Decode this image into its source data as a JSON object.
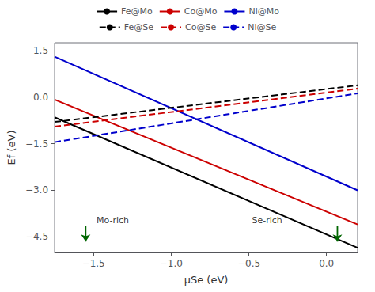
{
  "chart_data": {
    "type": "line",
    "xlabel": "μSe (eV)",
    "ylabel": "Ef (eV)",
    "xlim": [
      -1.75,
      0.2
    ],
    "ylim": [
      -5.0,
      1.75
    ],
    "xticks": [
      {
        "value": -1.5,
        "label": "−1.5"
      },
      {
        "value": -1.0,
        "label": "−1.0"
      },
      {
        "value": -0.5,
        "label": "−0.5"
      },
      {
        "value": 0.0,
        "label": "0.0"
      }
    ],
    "yticks": [
      {
        "value": -4.5,
        "label": "−4.5"
      },
      {
        "value": -3.0,
        "label": "−3.0"
      },
      {
        "value": -1.5,
        "label": "−1.5"
      },
      {
        "value": 0.0,
        "label": "0.0"
      },
      1.5
    ],
    "grid": false,
    "legend": "top",
    "series": [
      {
        "name": "Fe@Mo",
        "color": "#000000",
        "line_style": "solid",
        "x": [
          -1.75,
          0.2
        ],
        "values": [
          -0.65,
          -4.85
        ]
      },
      {
        "name": "Co@Mo",
        "color": "#cc0000",
        "line_style": "solid",
        "x": [
          -1.75,
          0.2
        ],
        "values": [
          -0.08,
          -4.1
        ]
      },
      {
        "name": "Ni@Mo",
        "color": "#0000cc",
        "line_style": "solid",
        "x": [
          -1.75,
          0.2
        ],
        "values": [
          1.3,
          -3.0
        ]
      },
      {
        "name": "Fe@Se",
        "color": "#000000",
        "line_style": "dashed",
        "x": [
          -1.75,
          0.2
        ],
        "values": [
          -0.8,
          0.38
        ]
      },
      {
        "name": "Co@Se",
        "color": "#cc0000",
        "line_style": "dashed",
        "x": [
          -1.75,
          0.2
        ],
        "values": [
          -0.95,
          0.27
        ]
      },
      {
        "name": "Ni@Se",
        "color": "#0000cc",
        "line_style": "dashed",
        "x": [
          -1.75,
          0.2
        ],
        "values": [
          -1.45,
          0.12
        ]
      }
    ],
    "arrows": [
      {
        "x": -1.55,
        "y0": -4.15,
        "y1": -4.65,
        "color": "#006600"
      },
      {
        "x": 0.07,
        "y0": -4.15,
        "y1": -4.65,
        "color": "#006600"
      }
    ],
    "annotations": [
      {
        "text": "Mo-rich",
        "x": -1.48,
        "y": -4.1
      },
      {
        "text": "Se-rich",
        "x": -0.48,
        "y": -4.1
      }
    ]
  }
}
